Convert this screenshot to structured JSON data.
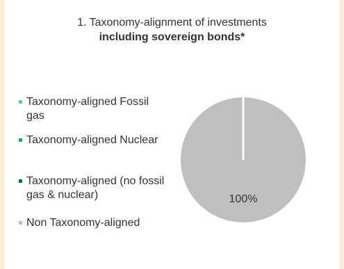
{
  "title": {
    "line1": "1. Taxonomy-alignment of investments",
    "line2": "including sovereign bonds*"
  },
  "legend": [
    {
      "label": "Taxonomy-aligned Fossil gas",
      "color": "#5ecba1"
    },
    {
      "label": "Taxonomy-aligned Nuclear",
      "color": "#21a366"
    },
    {
      "label": "Taxonomy-aligned (no fossil gas & nuclear)",
      "color": "#00704a"
    },
    {
      "label": "Non Taxonomy-aligned",
      "color": "#bfbfbf"
    }
  ],
  "chart_data": {
    "type": "pie",
    "title": "1. Taxonomy-alignment of investments including sovereign bonds*",
    "categories": [
      "Taxonomy-aligned Fossil gas",
      "Taxonomy-aligned Nuclear",
      "Taxonomy-aligned (no fossil gas & nuclear)",
      "Non Taxonomy-aligned"
    ],
    "values": [
      0,
      0,
      0,
      100
    ],
    "colors": [
      "#5ecba1",
      "#21a366",
      "#00704a",
      "#bfbfbf"
    ],
    "data_labels": [
      "",
      "",
      "",
      "100%"
    ],
    "legend_position": "left"
  }
}
